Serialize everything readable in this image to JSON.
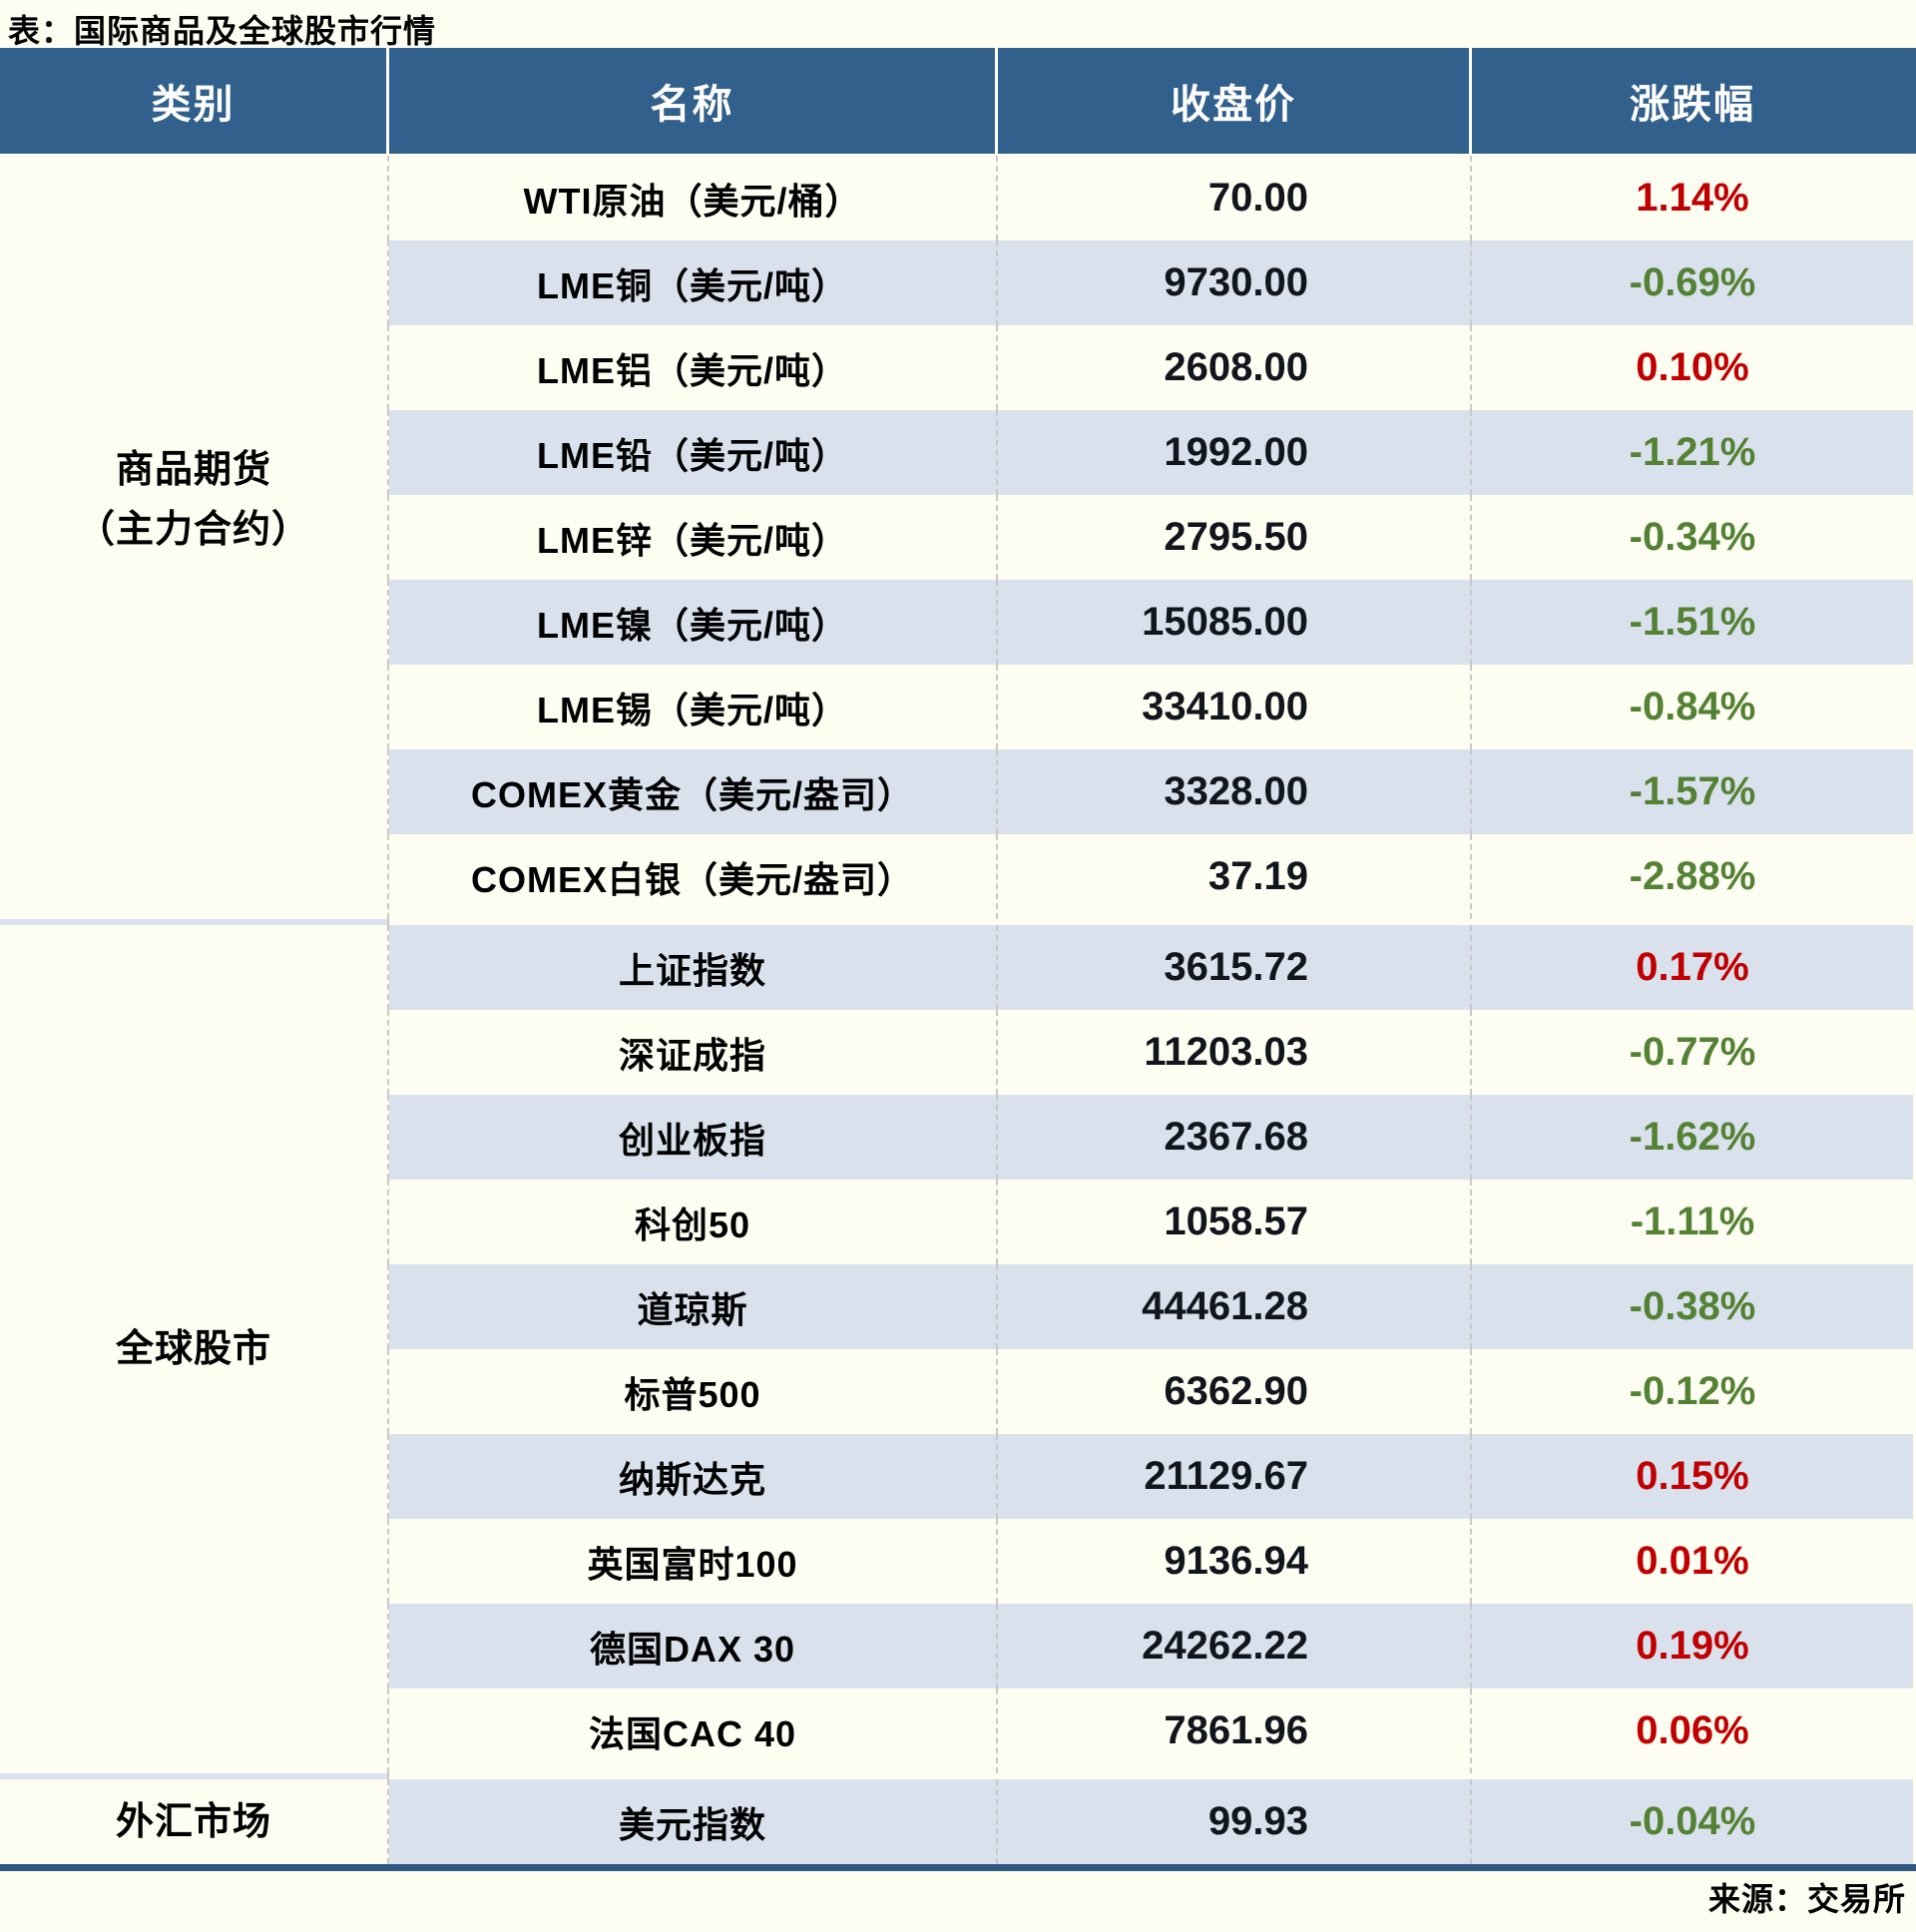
{
  "title": "表：国际商品及全球股市行情",
  "source": "来源：交易所",
  "columns": [
    "类别",
    "名称",
    "收盘价",
    "涨跌幅"
  ],
  "colors": {
    "page_background": "#FDFDF2",
    "header_background": "#31608C",
    "stripe_row_background": "#D9E1ED",
    "plain_row_background": "#FDFDF2",
    "up_red": "#C00000",
    "down_green": "#548235",
    "bottom_border": "#2E5880",
    "dashed_separator": "#C9C9C9"
  },
  "sections": [
    {
      "category_lines": [
        "商品期货",
        "（主力合约）"
      ],
      "rows": [
        {
          "name": "WTI原油（美元/桶）",
          "close": "70.00",
          "change": "1.14%",
          "direction": "up"
        },
        {
          "name": "LME铜（美元/吨）",
          "close": "9730.00",
          "change": "-0.69%",
          "direction": "down"
        },
        {
          "name": "LME铝（美元/吨）",
          "close": "2608.00",
          "change": "0.10%",
          "direction": "up"
        },
        {
          "name": "LME铅（美元/吨）",
          "close": "1992.00",
          "change": "-1.21%",
          "direction": "down"
        },
        {
          "name": "LME锌（美元/吨）",
          "close": "2795.50",
          "change": "-0.34%",
          "direction": "down"
        },
        {
          "name": "LME镍（美元/吨）",
          "close": "15085.00",
          "change": "-1.51%",
          "direction": "down"
        },
        {
          "name": "LME锡（美元/吨）",
          "close": "33410.00",
          "change": "-0.84%",
          "direction": "down"
        },
        {
          "name": "COMEX黄金（美元/盎司）",
          "close": "3328.00",
          "change": "-1.57%",
          "direction": "down"
        },
        {
          "name": "COMEX白银（美元/盎司）",
          "close": "37.19",
          "change": "-2.88%",
          "direction": "down"
        }
      ]
    },
    {
      "category_lines": [
        "全球股市"
      ],
      "rows": [
        {
          "name": "上证指数",
          "close": "3615.72",
          "change": "0.17%",
          "direction": "up"
        },
        {
          "name": "深证成指",
          "close": "11203.03",
          "change": "-0.77%",
          "direction": "down"
        },
        {
          "name": "创业板指",
          "close": "2367.68",
          "change": "-1.62%",
          "direction": "down"
        },
        {
          "name": "科创50",
          "close": "1058.57",
          "change": "-1.11%",
          "direction": "down"
        },
        {
          "name": "道琼斯",
          "close": "44461.28",
          "change": "-0.38%",
          "direction": "down"
        },
        {
          "name": "标普500",
          "close": "6362.90",
          "change": "-0.12%",
          "direction": "down"
        },
        {
          "name": "纳斯达克",
          "close": "21129.67",
          "change": "0.15%",
          "direction": "up"
        },
        {
          "name": "英国富时100",
          "close": "9136.94",
          "change": "0.01%",
          "direction": "up"
        },
        {
          "name": "德国DAX 30",
          "close": "24262.22",
          "change": "0.19%",
          "direction": "up"
        },
        {
          "name": "法国CAC 40",
          "close": "7861.96",
          "change": "0.06%",
          "direction": "up"
        }
      ]
    },
    {
      "category_lines": [
        "外汇市场"
      ],
      "rows": [
        {
          "name": "美元指数",
          "close": "99.93",
          "change": "-0.04%",
          "direction": "down"
        }
      ]
    }
  ],
  "chart_data": {
    "type": "table",
    "title": "表：国际商品及全球股市行情",
    "columns": [
      "类别",
      "名称",
      "收盘价",
      "涨跌幅"
    ],
    "rows": [
      [
        "商品期货（主力合约）",
        "WTI原油（美元/桶）",
        70.0,
        "1.14%"
      ],
      [
        "商品期货（主力合约）",
        "LME铜（美元/吨）",
        9730.0,
        "-0.69%"
      ],
      [
        "商品期货（主力合约）",
        "LME铝（美元/吨）",
        2608.0,
        "0.10%"
      ],
      [
        "商品期货（主力合约）",
        "LME铅（美元/吨）",
        1992.0,
        "-1.21%"
      ],
      [
        "商品期货（主力合约）",
        "LME锌（美元/吨）",
        2795.5,
        "-0.34%"
      ],
      [
        "商品期货（主力合约）",
        "LME镍（美元/吨）",
        15085.0,
        "-1.51%"
      ],
      [
        "商品期货（主力合约）",
        "LME锡（美元/吨）",
        33410.0,
        "-0.84%"
      ],
      [
        "商品期货（主力合约）",
        "COMEX黄金（美元/盎司）",
        3328.0,
        "-1.57%"
      ],
      [
        "商品期货（主力合约）",
        "COMEX白银（美元/盎司）",
        37.19,
        "-2.88%"
      ],
      [
        "全球股市",
        "上证指数",
        3615.72,
        "0.17%"
      ],
      [
        "全球股市",
        "深证成指",
        11203.03,
        "-0.77%"
      ],
      [
        "全球股市",
        "创业板指",
        2367.68,
        "-1.62%"
      ],
      [
        "全球股市",
        "科创50",
        1058.57,
        "-1.11%"
      ],
      [
        "全球股市",
        "道琼斯",
        44461.28,
        "-0.38%"
      ],
      [
        "全球股市",
        "标普500",
        6362.9,
        "-0.12%"
      ],
      [
        "全球股市",
        "纳斯达克",
        21129.67,
        "0.15%"
      ],
      [
        "全球股市",
        "英国富时100",
        9136.94,
        "0.01%"
      ],
      [
        "全球股市",
        "德国DAX 30",
        24262.22,
        "0.19%"
      ],
      [
        "全球股市",
        "法国CAC 40",
        7861.96,
        "0.06%"
      ],
      [
        "外汇市场",
        "美元指数",
        99.93,
        "-0.04%"
      ]
    ]
  }
}
